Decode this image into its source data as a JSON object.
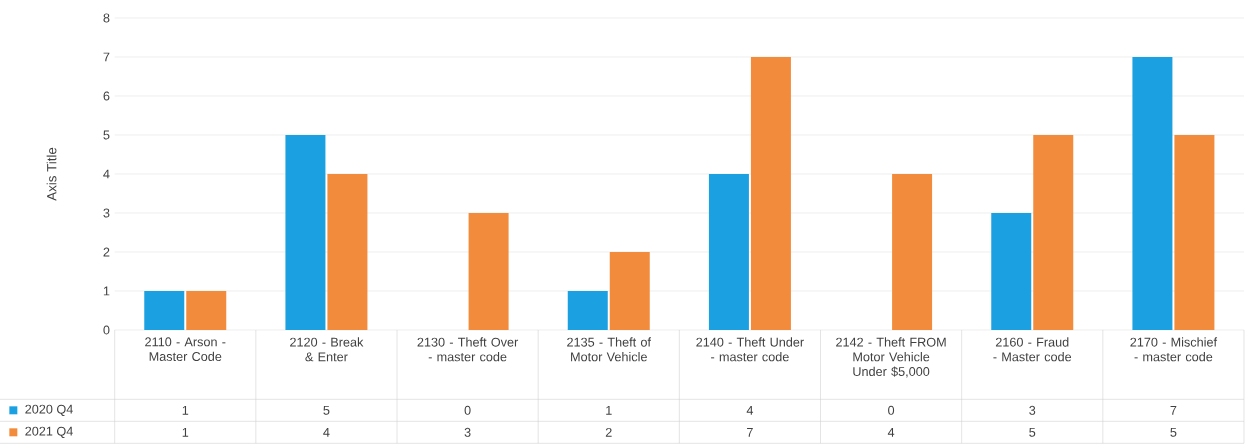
{
  "chart_data": {
    "type": "bar",
    "ylabel": "Axis Title",
    "categories": [
      "2110 - Arson - Master Code",
      "2120 - Break & Enter",
      "2130 - Theft Over - master code",
      "2135 - Theft of Motor Vehicle",
      "2140 - Theft Under - master code",
      "2142 - Theft FROM Motor Vehicle Under $5,000",
      "2160 - Fraud - Master code",
      "2170 - Mischief - master code"
    ],
    "series": [
      {
        "name": "2020 Q4",
        "color": "#1ba1e2",
        "values": [
          1,
          5,
          0,
          1,
          4,
          0,
          3,
          7
        ]
      },
      {
        "name": "2021 Q4",
        "color": "#f28b3c",
        "values": [
          1,
          4,
          3,
          2,
          7,
          4,
          5,
          5
        ]
      }
    ],
    "ylim": [
      0,
      8
    ],
    "yticks": [
      0,
      1,
      2,
      3,
      4,
      5,
      6,
      7,
      8
    ],
    "grid": "y",
    "data_labels": true,
    "legend": "bottom"
  }
}
